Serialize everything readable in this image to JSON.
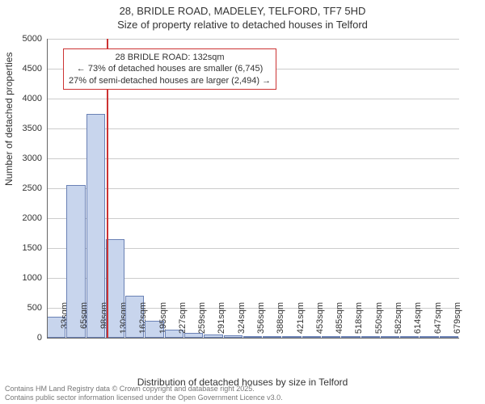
{
  "title_line1": "28, BRIDLE ROAD, MADELEY, TELFORD, TF7 5HD",
  "title_line2": "Size of property relative to detached houses in Telford",
  "ylabel": "Number of detached properties",
  "xlabel": "Distribution of detached houses by size in Telford",
  "footer_line1": "Contains HM Land Registry data © Crown copyright and database right 2025.",
  "footer_line2": "Contains public sector information licensed under the Open Government Licence v3.0.",
  "chart": {
    "type": "histogram",
    "ylim": [
      0,
      5000
    ],
    "ytick_step": 500,
    "background_color": "#ffffff",
    "grid_color": "#cccccc",
    "bar_fill": "#c8d5ed",
    "bar_stroke": "#6a81b5",
    "marker_color": "#cc3333",
    "title_fontsize": 13,
    "label_fontsize": 12,
    "tick_fontsize": 11,
    "categories": [
      "33sqm",
      "65sqm",
      "98sqm",
      "130sqm",
      "162sqm",
      "195sqm",
      "227sqm",
      "259sqm",
      "291sqm",
      "324sqm",
      "356sqm",
      "388sqm",
      "421sqm",
      "453sqm",
      "485sqm",
      "518sqm",
      "550sqm",
      "582sqm",
      "614sqm",
      "647sqm",
      "679sqm"
    ],
    "values": [
      350,
      2550,
      3750,
      1650,
      700,
      280,
      130,
      80,
      60,
      40,
      25,
      12,
      8,
      6,
      5,
      4,
      3,
      2,
      2,
      1,
      1
    ],
    "marker_category_index": 3,
    "marker_fraction_into_bin": 0.06,
    "yticks": [
      "0",
      "500",
      "1000",
      "1500",
      "2000",
      "2500",
      "3000",
      "3500",
      "4000",
      "4500",
      "5000"
    ]
  },
  "annotation": {
    "line1": "28 BRIDLE ROAD: 132sqm",
    "line2": "← 73% of detached houses are smaller (6,745)",
    "line3": "27% of semi-detached houses are larger (2,494) →",
    "border_color": "#cc3333",
    "fontsize": 11
  }
}
